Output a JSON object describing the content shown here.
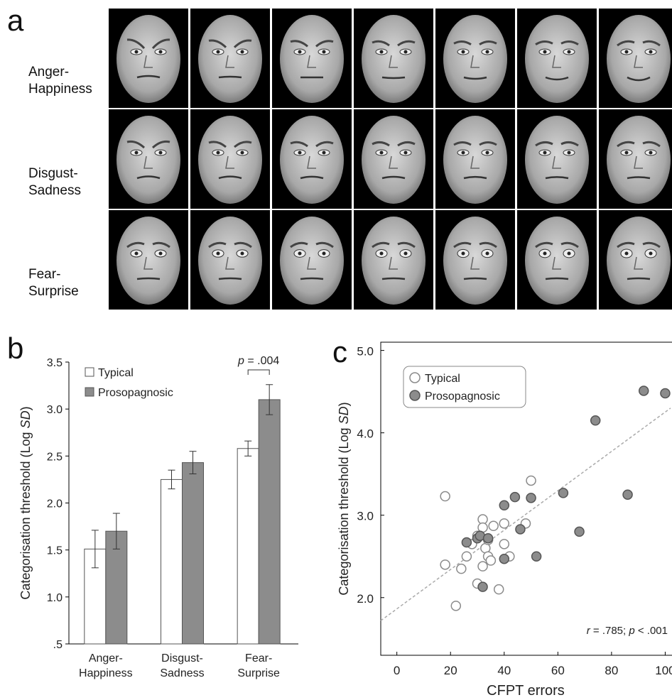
{
  "panel_a": {
    "letter": "a",
    "rows": [
      {
        "label_line1": "Anger-",
        "label_line2": "Happiness"
      },
      {
        "label_line1": "Disgust-",
        "label_line2": "Sadness"
      },
      {
        "label_line1": "Fear-",
        "label_line2": "Surprise"
      }
    ],
    "faces_per_row": 7
  },
  "chart_data": [
    {
      "panel": "b",
      "type": "bar",
      "ylabel_prefix": "Categorisation  threshold  (Log ",
      "ylabel_italic": "SD",
      "ylabel_suffix": ")",
      "ylim": [
        0.5,
        3.5
      ],
      "yticks": [
        ".5",
        "1.0",
        "1.5",
        "2.0",
        "2.5",
        "3.0",
        "3.5"
      ],
      "ytick_values": [
        0.5,
        1.0,
        1.5,
        2.0,
        2.5,
        3.0,
        3.5
      ],
      "categories": [
        {
          "line1": "Anger-",
          "line2": "Happiness"
        },
        {
          "line1": "Disgust-",
          "line2": "Sadness"
        },
        {
          "line1": "Fear-",
          "line2": "Surprise"
        }
      ],
      "series": [
        {
          "name": "Typical",
          "color": "#ffffff",
          "values": [
            1.51,
            2.25,
            2.58
          ],
          "errors": [
            0.2,
            0.1,
            0.08
          ]
        },
        {
          "name": "Prosopagnosic",
          "color": "#8c8c8c",
          "values": [
            1.7,
            2.43,
            3.1
          ],
          "errors": [
            0.19,
            0.12,
            0.16
          ]
        }
      ],
      "legend_position": "top-left",
      "annotation": {
        "p_label": "p",
        "text": " = .004",
        "category_index": 2
      }
    },
    {
      "panel": "c",
      "type": "scatter",
      "xlabel": "CFPT errors",
      "ylabel_prefix": "Categorisation  threshold  (Log ",
      "ylabel_italic": "SD",
      "ylabel_suffix": ")",
      "xlim": [
        -6,
        102
      ],
      "ylim": [
        1.3,
        5.1
      ],
      "xticks": [
        "0",
        "20",
        "40",
        "60",
        "80",
        "100"
      ],
      "xtick_values": [
        0,
        20,
        40,
        60,
        80,
        100
      ],
      "yticks": [
        "2.0",
        "3.0",
        "4.0",
        "5.0"
      ],
      "ytick_values": [
        2.0,
        3.0,
        4.0,
        5.0
      ],
      "legend_position": "top-left",
      "series": [
        {
          "name": "Typical",
          "fill": "#ffffff",
          "stroke": "#8a8a8a",
          "points": [
            [
              18,
              3.23
            ],
            [
              18,
              2.4
            ],
            [
              22,
              1.9
            ],
            [
              24,
              2.35
            ],
            [
              26,
              2.5
            ],
            [
              28,
              2.65
            ],
            [
              30,
              2.75
            ],
            [
              30,
              2.17
            ],
            [
              32,
              2.95
            ],
            [
              32,
              2.85
            ],
            [
              32,
              2.38
            ],
            [
              33,
              2.6
            ],
            [
              34,
              2.7
            ],
            [
              34,
              2.5
            ],
            [
              35,
              2.45
            ],
            [
              36,
              2.87
            ],
            [
              38,
              2.1
            ],
            [
              40,
              2.65
            ],
            [
              40,
              2.9
            ],
            [
              42,
              2.5
            ],
            [
              48,
              2.9
            ],
            [
              50,
              3.42
            ]
          ]
        },
        {
          "name": "Prosopagnosic",
          "fill": "#8c8c8c",
          "stroke": "#555555",
          "points": [
            [
              26,
              2.67
            ],
            [
              30,
              2.72
            ],
            [
              31,
              2.75
            ],
            [
              32,
              2.13
            ],
            [
              34,
              2.72
            ],
            [
              40,
              3.12
            ],
            [
              40,
              2.47
            ],
            [
              44,
              3.22
            ],
            [
              46,
              2.83
            ],
            [
              50,
              3.21
            ],
            [
              52,
              2.5
            ],
            [
              62,
              3.27
            ],
            [
              68,
              2.8
            ],
            [
              74,
              4.15
            ],
            [
              86,
              3.25
            ],
            [
              92,
              4.51
            ],
            [
              100,
              4.48
            ]
          ]
        }
      ],
      "trend_line": {
        "x0": -6,
        "y0": 1.72,
        "x1": 102,
        "y1": 4.3
      },
      "annotation": {
        "r_label": "r",
        "r_text": " = .785; ",
        "p_label": "p",
        "p_text": " < .001"
      }
    }
  ]
}
